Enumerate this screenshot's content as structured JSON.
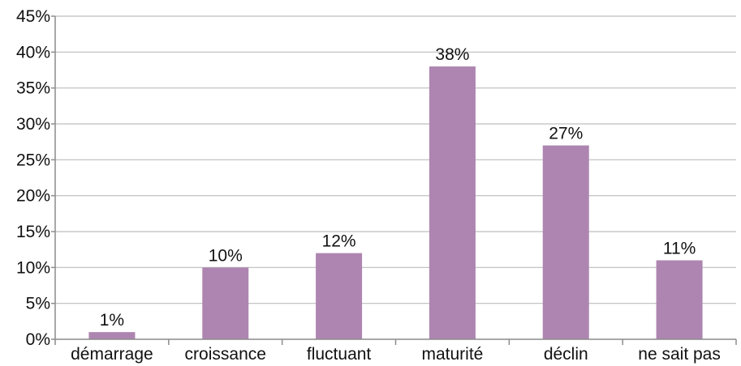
{
  "chart_data": {
    "type": "bar",
    "categories": [
      "démarrage",
      "croissance",
      "fluctuant",
      "maturité",
      "déclin",
      "ne sait pas"
    ],
    "values": [
      1,
      10,
      12,
      38,
      27,
      11
    ],
    "value_labels": [
      "1%",
      "10%",
      "12%",
      "38%",
      "27%",
      "11%"
    ],
    "title": "",
    "xlabel": "",
    "ylabel": "",
    "ylim": [
      0,
      45
    ],
    "yticks": [
      0,
      5,
      10,
      15,
      20,
      25,
      30,
      35,
      40,
      45
    ],
    "ytick_labels": [
      "0%",
      "5%",
      "10%",
      "15%",
      "20%",
      "25%",
      "30%",
      "35%",
      "40%",
      "45%"
    ],
    "grid": true,
    "legend": "none",
    "colors": {
      "bar": "#ae85b1",
      "grid": "#bdbdbd",
      "axis": "#8c8c8c",
      "text": "#111111"
    }
  }
}
